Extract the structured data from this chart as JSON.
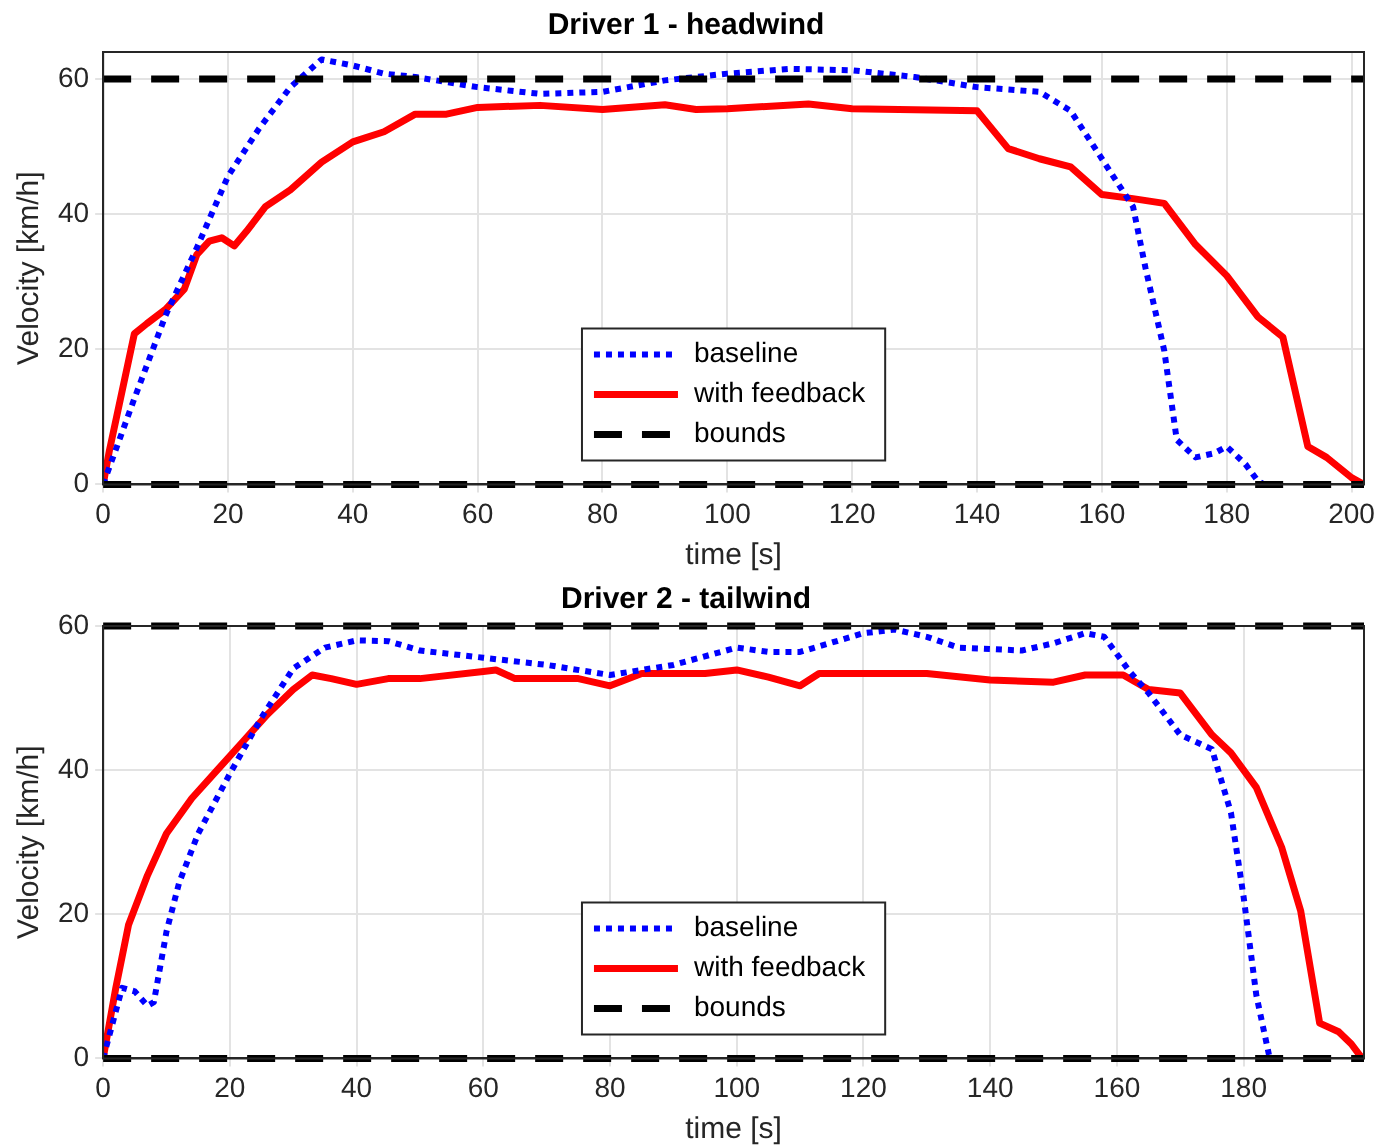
{
  "chart_data": [
    {
      "type": "line",
      "title": "Driver 1 - headwind",
      "xlabel": "time [s]",
      "ylabel": "Velocity [km/h]",
      "xlim": [
        0,
        202
      ],
      "xticks": [
        0,
        20,
        40,
        60,
        80,
        100,
        120,
        140,
        160,
        180,
        200
      ],
      "ylim": [
        0,
        64
      ],
      "yticks": [
        0,
        20,
        40,
        60
      ],
      "grid": true,
      "legend": "bottom",
      "marker": "none",
      "series": [
        {
          "name": "baseline",
          "color": "#0000ff",
          "line_style": "dotted",
          "x": [
            0,
            5,
            10,
            15,
            20,
            25,
            30,
            35,
            40,
            45,
            50,
            60,
            70,
            80,
            90,
            100,
            110,
            120,
            130,
            140,
            150,
            155,
            160,
            165,
            167,
            170,
            172,
            175,
            178,
            180,
            183,
            185,
            186
          ],
          "values": [
            0,
            12.7,
            25,
            35,
            45.6,
            52.7,
            58.8,
            62.9,
            62,
            60.8,
            60.3,
            58.8,
            57.8,
            58.1,
            59.8,
            60.8,
            61.5,
            61.3,
            60.3,
            58.8,
            58.1,
            55.3,
            48.2,
            41.1,
            32,
            19.8,
            6.6,
            4,
            4.6,
            5.6,
            3,
            0.5,
            0
          ]
        },
        {
          "name": "with feedback",
          "color": "#ff0000",
          "line_style": "solid",
          "x": [
            0,
            1,
            5,
            7,
            10,
            13,
            15,
            17,
            19,
            21,
            23,
            26,
            30,
            35,
            40,
            45,
            50,
            55,
            60,
            70,
            80,
            90,
            95,
            100,
            113,
            120,
            140,
            145,
            150,
            155,
            160,
            165,
            170,
            175,
            180,
            185,
            189,
            193,
            196,
            200,
            202
          ],
          "values": [
            0,
            5,
            22.3,
            23.8,
            25.9,
            28.9,
            34,
            36,
            36.5,
            35.3,
            37.5,
            41.1,
            43.6,
            47.7,
            50.7,
            52.2,
            54.8,
            54.8,
            55.8,
            56.1,
            55.5,
            56.2,
            55.5,
            55.6,
            56.3,
            55.6,
            55.3,
            49.7,
            48.2,
            47,
            42.9,
            42.3,
            41.6,
            35.5,
            30.9,
            24.8,
            21.8,
            5.6,
            4,
            1,
            0
          ]
        }
      ],
      "ref_lines": [
        {
          "axis": "y",
          "value": 60,
          "label": "bounds",
          "color": "#000000",
          "line_style": "dashed"
        },
        {
          "axis": "y",
          "value": 0,
          "color": "#000000",
          "line_style": "dashed"
        }
      ]
    },
    {
      "type": "line",
      "title": "Driver 2 - tailwind",
      "xlabel": "time [s]",
      "ylabel": "Velocity [km/h]",
      "xlim": [
        0,
        199
      ],
      "xticks": [
        0,
        20,
        40,
        60,
        80,
        100,
        120,
        140,
        160,
        180
      ],
      "ylim": [
        0,
        60
      ],
      "yticks": [
        0,
        20,
        40,
        60
      ],
      "grid": true,
      "legend": "bottom",
      "marker": "none",
      "series": [
        {
          "name": "baseline",
          "color": "#0000ff",
          "line_style": "dotted",
          "x": [
            0,
            3,
            5,
            7,
            8,
            10,
            12,
            15,
            20,
            25,
            30,
            35,
            40,
            45,
            50,
            60,
            70,
            80,
            90,
            100,
            105,
            110,
            120,
            125,
            130,
            135,
            145,
            150,
            155,
            158,
            162,
            165,
            170,
            172,
            175,
            178,
            180,
            182,
            184,
            185
          ],
          "values": [
            0,
            9.8,
            9.3,
            7.3,
            7.8,
            17.6,
            24.4,
            31.2,
            39.5,
            47.3,
            54.1,
            57,
            58,
            57.9,
            56.6,
            55.6,
            54.6,
            53.2,
            54.6,
            57,
            56.4,
            56.4,
            59,
            59.5,
            58.5,
            57,
            56.6,
            57.6,
            59,
            58.5,
            53.7,
            50.7,
            44.9,
            44.1,
            42.9,
            34.1,
            22.4,
            8.8,
            0.5,
            0
          ]
        },
        {
          "name": "with feedback",
          "color": "#ff0000",
          "line_style": "solid",
          "x": [
            0,
            2,
            4,
            7,
            10,
            14,
            18,
            22,
            26,
            30,
            33,
            36,
            40,
            45,
            50,
            60,
            62,
            65,
            75,
            80,
            85,
            95,
            100,
            105,
            110,
            113,
            120,
            130,
            140,
            150,
            155,
            161,
            165,
            170,
            175,
            178,
            182,
            186,
            189,
            192,
            195,
            197,
            198.7
          ],
          "values": [
            0,
            9.8,
            18.5,
            25.4,
            31.2,
            36.1,
            40,
            43.9,
            47.8,
            51.2,
            53.2,
            52.7,
            51.9,
            52.7,
            52.7,
            53.7,
            53.9,
            52.7,
            52.7,
            51.7,
            53.4,
            53.4,
            53.9,
            52.9,
            51.7,
            53.4,
            53.4,
            53.4,
            52.5,
            52.2,
            53.2,
            53.2,
            51.2,
            50.7,
            44.9,
            42.4,
            37.6,
            29.3,
            20.5,
            4.9,
            3.7,
            2,
            0
          ]
        }
      ],
      "ref_lines": [
        {
          "axis": "y",
          "value": 60,
          "label": "bounds",
          "color": "#000000",
          "line_style": "dashed"
        },
        {
          "axis": "y",
          "value": 0,
          "color": "#000000",
          "line_style": "dashed"
        }
      ]
    }
  ]
}
